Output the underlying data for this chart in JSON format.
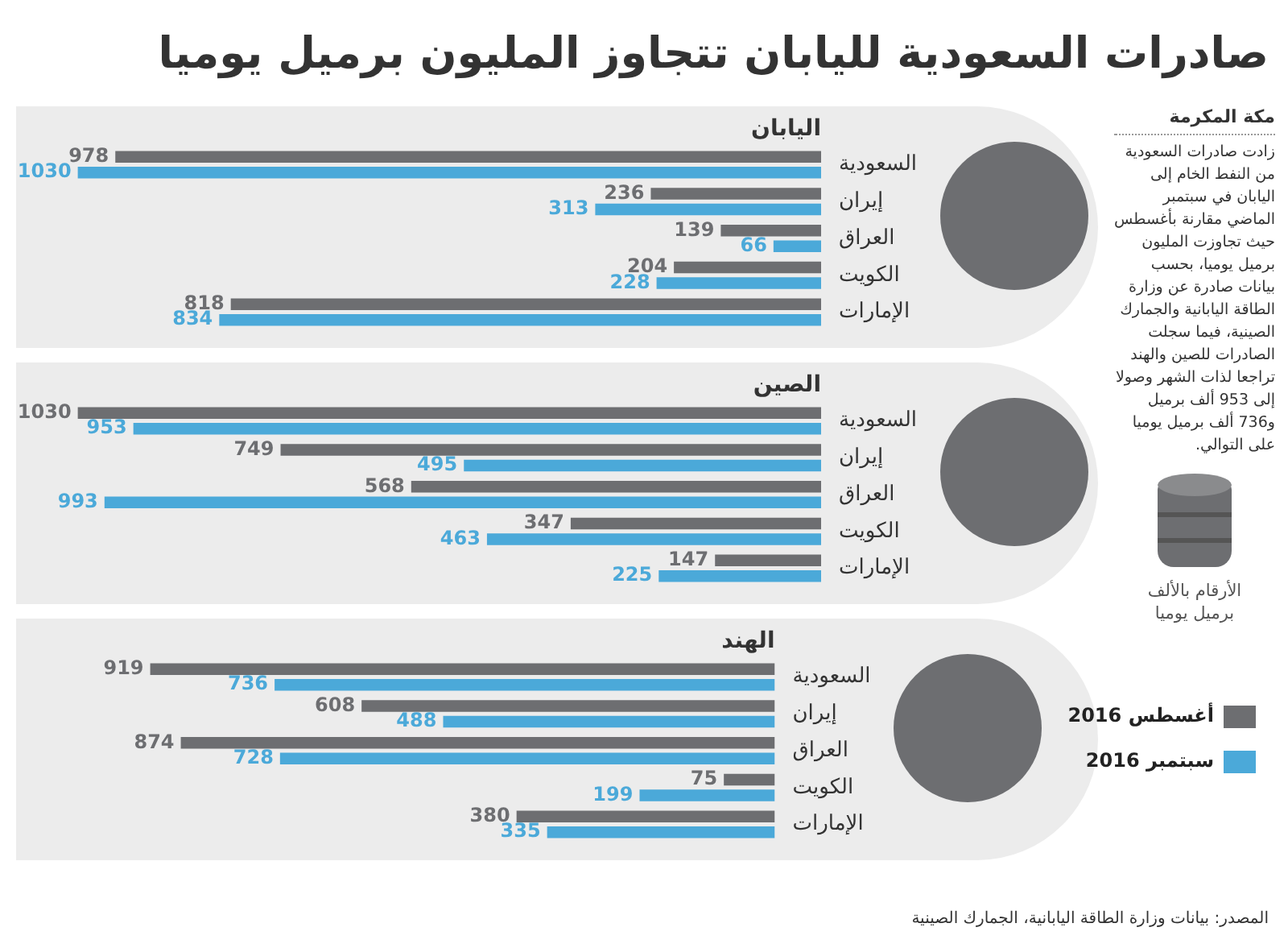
{
  "chart_data": [
    {
      "type": "other",
      "title": "صادرات السعودية لليابان تتجاوز المليون برميل يوميا",
      "annotations": [
        "مكة المكرمة",
        "زادت صادرات السعودية من النفط الخام إلى اليابان في سبتمبر الماضي مقارنة بأغسطس حيث تجاوزت المليون برميل يوميا، بحسب بيانات صادرة عن وزارة الطاقة اليابانية والجمارك الصينية، فيما سجلت الصادرات للصين والهند تراجعا لذات الشهر وصولا إلى 953 ألف برميل و736 ألف برميل يوميا على التوالي.",
        "الأرقام بالألف برميل يوميا",
        "المصدر: بيانات وزارة الطاقة اليابانية، الجمارك الصينية"
      ]
    },
    {
      "type": "bar",
      "orientation": "horizontal",
      "title": "اليابان",
      "categories": [
        "السعودية",
        "إيران",
        "العراق",
        "الكويت",
        "الإمارات"
      ],
      "data_labels": true,
      "series": [
        {
          "color": "#6d6e71",
          "values": [
            978,
            236,
            139,
            204,
            818
          ]
        },
        {
          "color": "#4ba9d9",
          "values": [
            1030,
            313,
            66,
            228,
            834
          ]
        }
      ]
    },
    {
      "type": "bar",
      "orientation": "horizontal",
      "title": "الصين",
      "categories": [
        "السعودية",
        "إيران",
        "العراق",
        "الكويت",
        "الإمارات"
      ],
      "data_labels": true,
      "series": [
        {
          "color": "#6d6e71",
          "values": [
            1030,
            749,
            568,
            347,
            147
          ]
        },
        {
          "color": "#4ba9d9",
          "values": [
            953,
            495,
            993,
            463,
            225
          ]
        }
      ]
    },
    {
      "type": "bar",
      "orientation": "horizontal",
      "title": "الهند",
      "categories": [
        "السعودية",
        "إيران",
        "العراق",
        "الكويت",
        "الإمارات"
      ],
      "data_labels": true,
      "legend": "right",
      "series": [
        {
          "name": "أغسطس 2016",
          "color": "#6d6e71",
          "values": [
            919,
            608,
            874,
            75,
            380
          ]
        },
        {
          "name": "سبتمبر 2016",
          "color": "#4ba9d9",
          "values": [
            736,
            488,
            728,
            199,
            335
          ]
        }
      ]
    }
  ]
}
